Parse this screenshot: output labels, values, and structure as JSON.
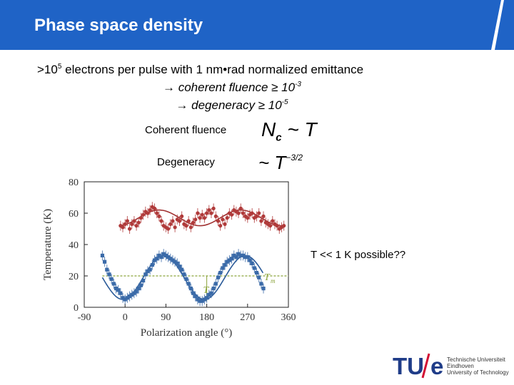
{
  "slide": {
    "title": "Phase space density",
    "line1_a": ">10",
    "line1_sup": "5",
    "line1_b": " electrons per pulse with 1 nm•rad normalized emittance",
    "line2_a": "→ coherent fluence ≥ 10",
    "line2_sup": "-3",
    "line3_a": "→ degeneracy ≥ 10",
    "line3_sup": "-5",
    "coherent_label": "Coherent fluence",
    "degeneracy_label": "Degeneracy",
    "formula1_n": "N",
    "formula1_sub": "c",
    "formula1_rest": " ~ T",
    "formula2_main": "~ T",
    "formula2_sup": "−3/2",
    "note": "T << 1 K possible??"
  },
  "logo": {
    "mark_left": "TU",
    "mark_right": "e",
    "line1": "Technische Universiteit",
    "line2": "Eindhoven",
    "line3": "University of Technology"
  },
  "chart_data": {
    "type": "scatter",
    "xlabel": "Polarization angle (°)",
    "ylabel": "Temperature (K)",
    "xlim": [
      -90,
      360
    ],
    "ylim": [
      0,
      80
    ],
    "xticks": [
      -90,
      0,
      90,
      180,
      270,
      360
    ],
    "yticks": [
      0,
      20,
      40,
      60,
      80
    ],
    "annotations": [
      "T",
      "T",
      "m"
    ],
    "series": [
      {
        "color": "#b03a3a",
        "x": [
          -10,
          -5,
          0,
          5,
          10,
          15,
          20,
          25,
          30,
          35,
          40,
          45,
          50,
          55,
          60,
          65,
          70,
          75,
          80,
          85,
          90,
          95,
          100,
          105,
          110,
          115,
          120,
          125,
          130,
          135,
          140,
          145,
          150,
          155,
          160,
          165,
          170,
          175,
          180,
          185,
          190,
          195,
          200,
          205,
          210,
          215,
          220,
          225,
          230,
          235,
          240,
          245,
          250,
          255,
          260,
          265,
          270,
          275,
          280,
          285,
          290,
          295,
          300,
          305,
          310,
          315,
          320,
          325,
          330,
          335,
          340,
          345,
          350
        ],
        "y": [
          52,
          51,
          53,
          55,
          50,
          53,
          55,
          52,
          54,
          57,
          59,
          61,
          60,
          62,
          64,
          63,
          60,
          58,
          55,
          52,
          51,
          50,
          53,
          55,
          51,
          56,
          55,
          58,
          53,
          52,
          55,
          51,
          54,
          56,
          60,
          57,
          59,
          57,
          60,
          62,
          60,
          63,
          58,
          55,
          52,
          56,
          53,
          57,
          60,
          59,
          62,
          61,
          60,
          63,
          60,
          58,
          57,
          59,
          60,
          57,
          58,
          60,
          55,
          58,
          54,
          53,
          52,
          55,
          53,
          52,
          50,
          51,
          52
        ]
      },
      {
        "color": "#3a6aa8",
        "x": [
          -50,
          -45,
          -40,
          -35,
          -30,
          -25,
          -20,
          -15,
          -10,
          -5,
          0,
          5,
          10,
          15,
          20,
          25,
          30,
          35,
          40,
          45,
          50,
          55,
          60,
          65,
          70,
          75,
          80,
          85,
          90,
          95,
          100,
          105,
          110,
          115,
          120,
          125,
          130,
          135,
          140,
          145,
          150,
          155,
          160,
          165,
          170,
          175,
          180,
          185,
          190,
          195,
          200,
          205,
          210,
          215,
          220,
          225,
          230,
          235,
          240,
          245,
          250,
          255,
          260,
          265,
          270,
          275,
          280,
          285,
          290,
          295,
          300,
          305
        ],
        "y": [
          33,
          29,
          24,
          21,
          18,
          15,
          12,
          11,
          9,
          6,
          5,
          6,
          7,
          8,
          9,
          10,
          12,
          14,
          17,
          21,
          23,
          24,
          27,
          30,
          31,
          33,
          32,
          34,
          33,
          32,
          31,
          30,
          29,
          28,
          26,
          24,
          21,
          18,
          15,
          12,
          9,
          7,
          5,
          4,
          4,
          5,
          6,
          8,
          9,
          12,
          15,
          19,
          22,
          25,
          27,
          29,
          30,
          31,
          33,
          32,
          34,
          33,
          33,
          32,
          32,
          30,
          28,
          25,
          22,
          19,
          15,
          12
        ]
      }
    ]
  }
}
